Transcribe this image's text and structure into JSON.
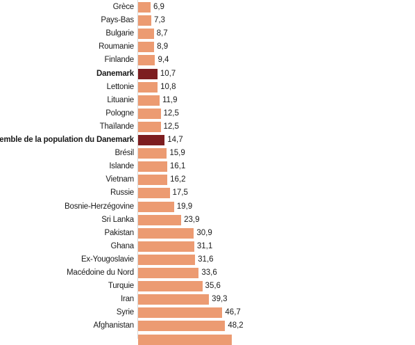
{
  "chart_data": {
    "type": "bar",
    "orientation": "horizontal",
    "categories": [
      "Grèce",
      "Pays-Bas",
      "Bulgarie",
      "Roumanie",
      "Finlande",
      "Danemark",
      "Lettonie",
      "Lituanie",
      "Pologne",
      "Thaïlande",
      "Ensemble de la population du Danemark",
      "Brésil",
      "Islande",
      "Vietnam",
      "Russie",
      "Bosnie-Herzégovine",
      "Sri Lanka",
      "Pakistan",
      "Ghana",
      "Ex-Yougoslavie",
      "Macédoine du Nord",
      "Turquie",
      "Iran",
      "Syrie",
      "Afghanistan"
    ],
    "values": [
      6.9,
      7.3,
      8.7,
      8.9,
      9.4,
      10.7,
      10.8,
      11.9,
      12.5,
      12.5,
      14.7,
      15.9,
      16.1,
      16.2,
      17.5,
      19.9,
      23.9,
      30.9,
      31.1,
      31.6,
      33.6,
      35.6,
      39.3,
      46.7,
      48.2
    ],
    "value_labels": [
      "6,9",
      "7,3",
      "8,7",
      "8,9",
      "9,4",
      "10,7",
      "10,8",
      "11,9",
      "12,5",
      "12,5",
      "14,7",
      "15,9",
      "16,1",
      "16,2",
      "17,5",
      "19,9",
      "23,9",
      "30,9",
      "31,1",
      "31,6",
      "33,6",
      "35,6",
      "39,3",
      "46,7",
      "48,2"
    ],
    "highlighted": [
      "Danemark",
      "Ensemble de la population du Danemark"
    ],
    "colors": {
      "bar": "#ec9b72",
      "highlight": "#7d1e20"
    },
    "partially_visible_bar_value": 52
  }
}
